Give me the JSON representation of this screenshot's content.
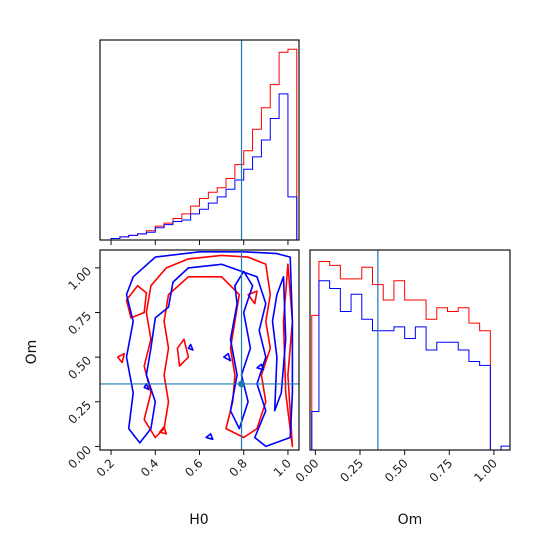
{
  "chart_data": [
    {
      "type": "histogram",
      "panel": "H0 marginal",
      "xlabel": "",
      "ylabel": "",
      "xlim": [
        0.15,
        1.05
      ],
      "truth": 0.79,
      "bin_edges": [
        0.2,
        0.24,
        0.28,
        0.32,
        0.36,
        0.4,
        0.44,
        0.48,
        0.52,
        0.56,
        0.6,
        0.64,
        0.68,
        0.72,
        0.76,
        0.8,
        0.84,
        0.88,
        0.92,
        0.96,
        1.0,
        1.04
      ],
      "series": [
        {
          "color": "#ff0000",
          "values": [
            1,
            2,
            3,
            4,
            6,
            9,
            11,
            14,
            17,
            22,
            27,
            31,
            34,
            40,
            49,
            58,
            72,
            86,
            101,
            122,
            124
          ]
        },
        {
          "color": "#0000ff",
          "values": [
            1,
            2,
            3,
            4,
            5,
            8,
            10,
            12,
            13,
            17,
            20,
            24,
            28,
            33,
            39,
            46,
            54,
            65,
            79,
            95,
            28
          ]
        }
      ]
    },
    {
      "type": "contour",
      "panel": "H0 vs Om",
      "xlabel": "H0",
      "ylabel": "Om",
      "xlim": [
        0.15,
        1.05
      ],
      "ylim": [
        -0.02,
        1.1
      ],
      "xticks": [
        "0.2",
        "0.4",
        "0.6",
        "0.8",
        "1.0"
      ],
      "yticks": [
        "0.00",
        "0.25",
        "0.50",
        "0.75",
        "1.00"
      ],
      "truth": {
        "x": 0.79,
        "y": 0.35
      },
      "series": [
        {
          "color": "#ff0000",
          "contours": [
            [
              [
                0.45,
                1.0
              ],
              [
                0.55,
                1.05
              ],
              [
                0.7,
                1.07
              ],
              [
                0.82,
                1.06
              ],
              [
                0.9,
                1.02
              ],
              [
                0.92,
                0.85
              ],
              [
                0.9,
                0.7
              ],
              [
                0.92,
                0.55
              ],
              [
                0.88,
                0.4
              ],
              [
                0.9,
                0.25
              ],
              [
                0.86,
                0.1
              ],
              [
                0.8,
                0.05
              ],
              [
                0.72,
                0.1
              ],
              [
                0.75,
                0.25
              ],
              [
                0.76,
                0.4
              ],
              [
                0.74,
                0.55
              ],
              [
                0.76,
                0.7
              ],
              [
                0.78,
                0.85
              ],
              [
                0.7,
                0.95
              ],
              [
                0.55,
                0.95
              ],
              [
                0.46,
                0.85
              ],
              [
                0.44,
                0.7
              ],
              [
                0.46,
                0.55
              ],
              [
                0.44,
                0.4
              ],
              [
                0.46,
                0.25
              ],
              [
                0.44,
                0.1
              ],
              [
                0.4,
                0.05
              ],
              [
                0.35,
                0.15
              ],
              [
                0.38,
                0.3
              ],
              [
                0.35,
                0.45
              ],
              [
                0.38,
                0.6
              ],
              [
                0.36,
                0.75
              ],
              [
                0.38,
                0.9
              ],
              [
                0.45,
                1.0
              ]
            ],
            [
              [
                1.0,
                1.02
              ],
              [
                1.02,
                0.7
              ],
              [
                1.0,
                0.4
              ],
              [
                1.02,
                0.0
              ],
              [
                0.99,
                0.3
              ],
              [
                0.98,
                0.7
              ],
              [
                1.0,
                1.02
              ]
            ],
            [
              [
                0.27,
                0.82
              ],
              [
                0.32,
                0.9
              ],
              [
                0.36,
                0.86
              ],
              [
                0.35,
                0.75
              ],
              [
                0.29,
                0.72
              ],
              [
                0.27,
                0.82
              ]
            ],
            [
              [
                0.5,
                0.55
              ],
              [
                0.53,
                0.6
              ],
              [
                0.55,
                0.5
              ],
              [
                0.51,
                0.45
              ],
              [
                0.5,
                0.55
              ]
            ],
            [
              [
                0.82,
                0.85
              ],
              [
                0.86,
                0.87
              ],
              [
                0.85,
                0.8
              ],
              [
                0.82,
                0.85
              ]
            ],
            [
              [
                0.42,
                0.08
              ],
              [
                0.44,
                0.11
              ],
              [
                0.45,
                0.07
              ],
              [
                0.42,
                0.08
              ]
            ],
            [
              [
                0.23,
                0.5
              ],
              [
                0.26,
                0.52
              ],
              [
                0.25,
                0.47
              ],
              [
                0.23,
                0.5
              ]
            ]
          ]
        },
        {
          "color": "#0000ff",
          "contours": [
            [
              [
                0.3,
                0.95
              ],
              [
                0.4,
                1.06
              ],
              [
                0.6,
                1.09
              ],
              [
                0.8,
                1.09
              ],
              [
                0.95,
                1.08
              ],
              [
                1.01,
                1.06
              ],
              [
                1.02,
                0.7
              ],
              [
                1.02,
                0.3
              ],
              [
                1.01,
                0.05
              ],
              [
                0.9,
                0.0
              ],
              [
                0.85,
                0.05
              ],
              [
                0.9,
                0.2
              ],
              [
                0.86,
                0.35
              ],
              [
                0.9,
                0.5
              ],
              [
                0.87,
                0.65
              ],
              [
                0.9,
                0.8
              ],
              [
                0.86,
                0.95
              ],
              [
                0.7,
                1.02
              ],
              [
                0.55,
                1.0
              ],
              [
                0.48,
                0.92
              ],
              [
                0.46,
                0.78
              ],
              [
                0.4,
                0.72
              ],
              [
                0.38,
                0.55
              ],
              [
                0.36,
                0.4
              ],
              [
                0.4,
                0.25
              ],
              [
                0.38,
                0.1
              ],
              [
                0.33,
                0.02
              ],
              [
                0.28,
                0.1
              ],
              [
                0.3,
                0.3
              ],
              [
                0.27,
                0.5
              ],
              [
                0.3,
                0.7
              ],
              [
                0.27,
                0.85
              ],
              [
                0.3,
                0.95
              ]
            ],
            [
              [
                0.76,
                0.9
              ],
              [
                0.8,
                0.98
              ],
              [
                0.84,
                0.9
              ],
              [
                0.8,
                0.75
              ],
              [
                0.83,
                0.55
              ],
              [
                0.79,
                0.4
              ],
              [
                0.82,
                0.25
              ],
              [
                0.78,
                0.1
              ],
              [
                0.74,
                0.2
              ],
              [
                0.77,
                0.4
              ],
              [
                0.74,
                0.6
              ],
              [
                0.77,
                0.8
              ],
              [
                0.76,
                0.9
              ]
            ],
            [
              [
                0.95,
                0.85
              ],
              [
                0.98,
                0.95
              ],
              [
                0.99,
                0.6
              ],
              [
                0.97,
                0.3
              ],
              [
                0.94,
                0.2
              ],
              [
                0.95,
                0.5
              ],
              [
                0.93,
                0.7
              ],
              [
                0.95,
                0.85
              ]
            ],
            [
              [
                0.55,
                0.55
              ],
              [
                0.56,
                0.57
              ],
              [
                0.57,
                0.54
              ],
              [
                0.55,
                0.55
              ]
            ],
            [
              [
                0.71,
                0.5
              ],
              [
                0.73,
                0.52
              ],
              [
                0.74,
                0.48
              ],
              [
                0.71,
                0.5
              ]
            ],
            [
              [
                0.35,
                0.33
              ],
              [
                0.36,
                0.35
              ],
              [
                0.37,
                0.32
              ],
              [
                0.35,
                0.33
              ]
            ],
            [
              [
                0.63,
                0.05
              ],
              [
                0.65,
                0.07
              ],
              [
                0.66,
                0.04
              ],
              [
                0.63,
                0.05
              ]
            ],
            [
              [
                0.86,
                0.44
              ],
              [
                0.88,
                0.46
              ],
              [
                0.89,
                0.43
              ],
              [
                0.86,
                0.44
              ]
            ]
          ]
        }
      ]
    },
    {
      "type": "histogram",
      "panel": "Om marginal",
      "xlabel": "Om",
      "ylabel": "",
      "xlim": [
        -0.03,
        1.09
      ],
      "xticks": [
        "0.00",
        "0.25",
        "0.50",
        "0.75",
        "1.00"
      ],
      "truth": 0.35,
      "bin_edges": [
        -0.02,
        0.02,
        0.08,
        0.14,
        0.2,
        0.26,
        0.32,
        0.38,
        0.44,
        0.5,
        0.56,
        0.62,
        0.68,
        0.74,
        0.8,
        0.86,
        0.92,
        0.98,
        1.04,
        1.09
      ],
      "series": [
        {
          "color": "#ff0000",
          "values": [
            70,
            98,
            96,
            89,
            89,
            95,
            86,
            78,
            88,
            78,
            78,
            68,
            74,
            72,
            74,
            66,
            62,
            0,
            0
          ]
        },
        {
          "color": "#0000ff",
          "values": [
            20,
            88,
            84,
            72,
            81,
            68,
            62,
            62,
            64,
            58,
            64,
            52,
            56,
            56,
            52,
            46,
            44,
            0,
            2
          ]
        }
      ]
    }
  ]
}
